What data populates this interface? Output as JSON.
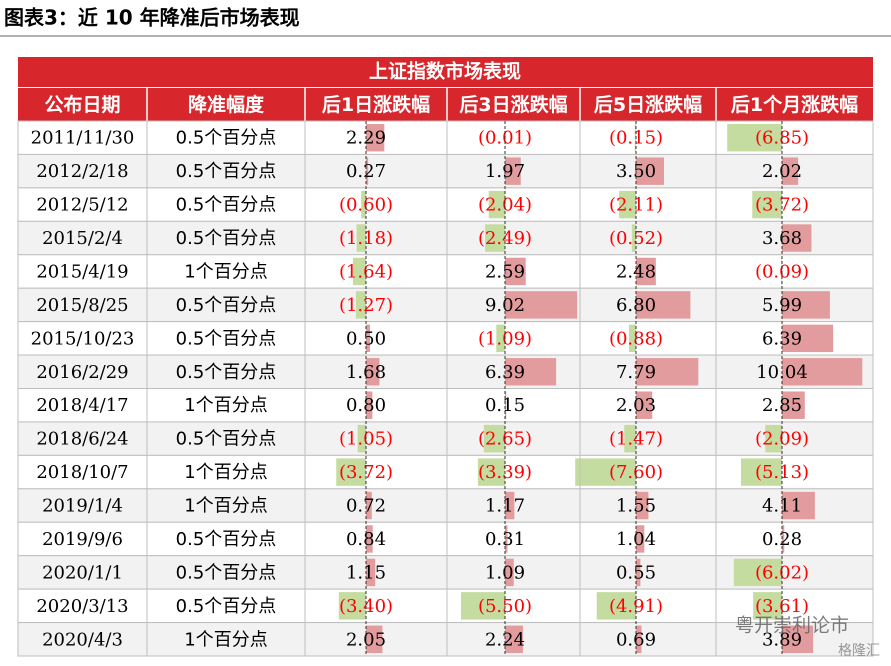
{
  "title": "图表3：近 10 年降准后市场表现",
  "table": {
    "title": "上证指数市场表现",
    "columns": [
      "公布日期",
      "降准幅度",
      "后1日涨跌幅",
      "后3日涨跌幅",
      "后5日涨跌幅",
      "后1个月涨跌幅"
    ],
    "rows": [
      {
        "date": "2011/11/30",
        "cut": "0.5个百分点",
        "values": [
          2.29,
          -0.01,
          -0.15,
          -6.85
        ],
        "value_labels": [
          "2.29",
          "(0.01)",
          "(0.15)",
          "(6.85)"
        ]
      },
      {
        "date": "2012/2/18",
        "cut": "0.5个百分点",
        "values": [
          0.27,
          1.97,
          3.5,
          2.02
        ],
        "value_labels": [
          "0.27",
          "1.97",
          "3.50",
          "2.02"
        ]
      },
      {
        "date": "2012/5/12",
        "cut": "0.5个百分点",
        "values": [
          -0.6,
          -2.04,
          -2.11,
          -3.72
        ],
        "value_labels": [
          "(0.60)",
          "(2.04)",
          "(2.11)",
          "(3.72)"
        ]
      },
      {
        "date": "2015/2/4",
        "cut": "0.5个百分点",
        "values": [
          -1.18,
          -2.49,
          -0.52,
          3.68
        ],
        "value_labels": [
          "(1.18)",
          "(2.49)",
          "(0.52)",
          "3.68"
        ]
      },
      {
        "date": "2015/4/19",
        "cut": "1个百分点",
        "values": [
          -1.64,
          2.59,
          2.48,
          -0.09
        ],
        "value_labels": [
          "(1.64)",
          "2.59",
          "2.48",
          "(0.09)"
        ]
      },
      {
        "date": "2015/8/25",
        "cut": "0.5个百分点",
        "values": [
          -1.27,
          9.02,
          6.8,
          5.99
        ],
        "value_labels": [
          "(1.27)",
          "9.02",
          "6.80",
          "5.99"
        ]
      },
      {
        "date": "2015/10/23",
        "cut": "0.5个百分点",
        "values": [
          0.5,
          -1.09,
          -0.88,
          6.39
        ],
        "value_labels": [
          "0.50",
          "(1.09)",
          "(0.88)",
          "6.39"
        ]
      },
      {
        "date": "2016/2/29",
        "cut": "0.5个百分点",
        "values": [
          1.68,
          6.39,
          7.79,
          10.04
        ],
        "value_labels": [
          "1.68",
          "6.39",
          "7.79",
          "10.04"
        ]
      },
      {
        "date": "2018/4/17",
        "cut": "1个百分点",
        "values": [
          0.8,
          0.15,
          2.03,
          2.85
        ],
        "value_labels": [
          "0.80",
          "0.15",
          "2.03",
          "2.85"
        ]
      },
      {
        "date": "2018/6/24",
        "cut": "0.5个百分点",
        "values": [
          -1.05,
          -2.65,
          -1.47,
          -2.09
        ],
        "value_labels": [
          "(1.05)",
          "(2.65)",
          "(1.47)",
          "(2.09)"
        ]
      },
      {
        "date": "2018/10/7",
        "cut": "1个百分点",
        "values": [
          -3.72,
          -3.39,
          -7.6,
          -5.13
        ],
        "value_labels": [
          "(3.72)",
          "(3.39)",
          "(7.60)",
          "(5.13)"
        ]
      },
      {
        "date": "2019/1/4",
        "cut": "1个百分点",
        "values": [
          0.72,
          1.17,
          1.55,
          4.11
        ],
        "value_labels": [
          "0.72",
          "1.17",
          "1.55",
          "4.11"
        ]
      },
      {
        "date": "2019/9/6",
        "cut": "0.5个百分点",
        "values": [
          0.84,
          0.31,
          1.04,
          0.28
        ],
        "value_labels": [
          "0.84",
          "0.31",
          "1.04",
          "0.28"
        ]
      },
      {
        "date": "2020/1/1",
        "cut": "0.5个百分点",
        "values": [
          1.15,
          1.09,
          0.55,
          -6.02
        ],
        "value_labels": [
          "1.15",
          "1.09",
          "0.55",
          "(6.02)"
        ]
      },
      {
        "date": "2020/3/13",
        "cut": "0.5个百分点",
        "values": [
          -3.4,
          -5.5,
          -4.91,
          -3.61
        ],
        "value_labels": [
          "(3.40)",
          "(5.50)",
          "(4.91)",
          "(3.61)"
        ]
      },
      {
        "date": "2020/4/3",
        "cut": "1个百分点",
        "values": [
          2.05,
          2.24,
          0.69,
          3.89
        ],
        "value_labels": [
          "2.05",
          "2.24",
          "0.69",
          "3.89"
        ]
      }
    ]
  },
  "watermark": {
    "account": "粤开崇利论市",
    "brand": "格隆汇"
  }
}
